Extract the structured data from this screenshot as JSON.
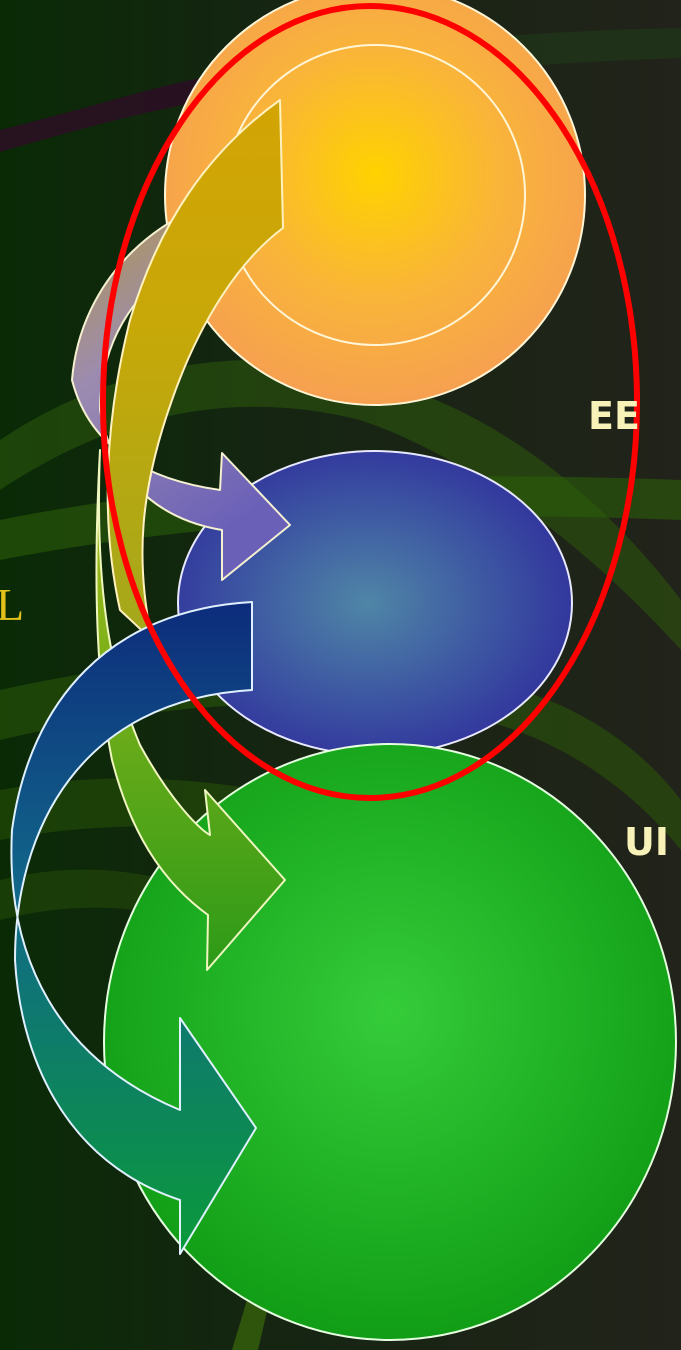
{
  "labels": {
    "left_partial": "L",
    "right_upper_partial": "EE",
    "right_lower_partial": "UI"
  },
  "nodes": [
    {
      "id": "top",
      "color": "orange",
      "fill_center": "#ffd200",
      "fill_edge": "#f6a34a"
    },
    {
      "id": "middle",
      "color": "blue",
      "fill_center": "#4f86a6",
      "fill_edge": "#333aa0"
    },
    {
      "id": "bottom",
      "color": "green",
      "fill_center": "#33c83a",
      "fill_edge": "#16a218"
    }
  ],
  "arrows": [
    {
      "from": "bottom",
      "to": "top",
      "color": "gold"
    },
    {
      "from": "top",
      "to": "middle",
      "color": "lavender"
    },
    {
      "from": "middle",
      "to": "bottom",
      "color": "blue-teal"
    },
    {
      "from": "top",
      "to": "bottom",
      "color": "yellow-green"
    }
  ],
  "highlight": {
    "color": "#ff0000",
    "target": "top-and-middle"
  }
}
